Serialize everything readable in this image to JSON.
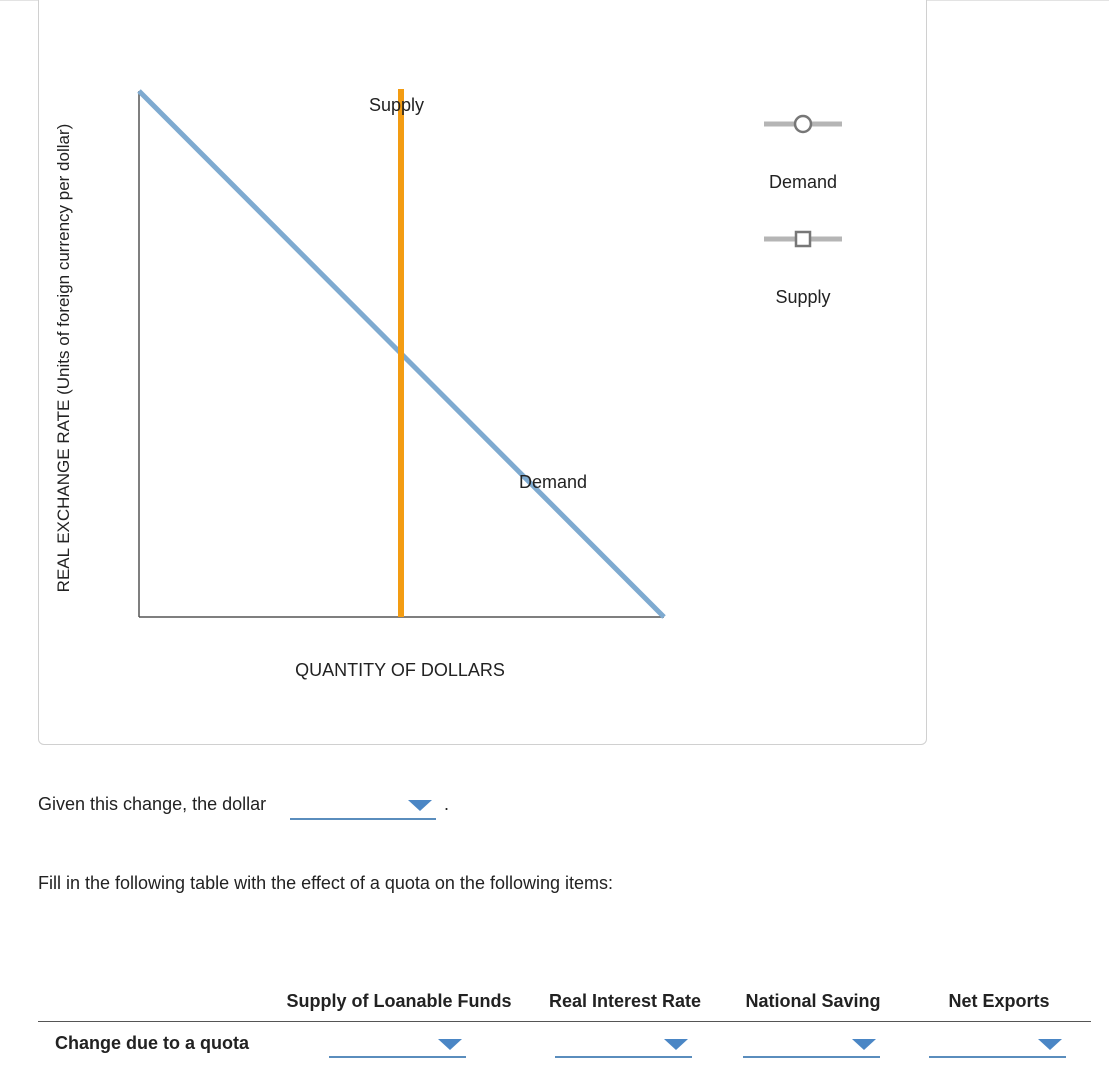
{
  "graph": {
    "y_axis_label": "REAL EXCHANGE RATE (Units of foreign currency per dollar)",
    "x_axis_label": "QUANTITY OF DOLLARS",
    "curve_labels": {
      "supply": "Supply",
      "demand": "Demand"
    },
    "colors": {
      "demand": "#7eaad0",
      "supply": "#f39c12",
      "axis": "#555555",
      "legend_handle": "#b5b5b5",
      "legend_marker": "#777777"
    }
  },
  "legend": [
    {
      "label": "Demand",
      "marker": "circle-icon"
    },
    {
      "label": "Supply",
      "marker": "square-icon"
    }
  ],
  "question": {
    "sentence": "Given this change, the dollar",
    "dropdown_value": "",
    "period": "."
  },
  "table": {
    "instruction": "Fill in the following table with the effect of a quota on the following items:",
    "columns": [
      "Supply of Loanable Funds",
      "Real Interest Rate",
      "National Saving",
      "Net Exports"
    ],
    "row_label": "Change due to a quota",
    "row_values": [
      "",
      "",
      "",
      ""
    ],
    "accent_color": "#4a86c5"
  }
}
